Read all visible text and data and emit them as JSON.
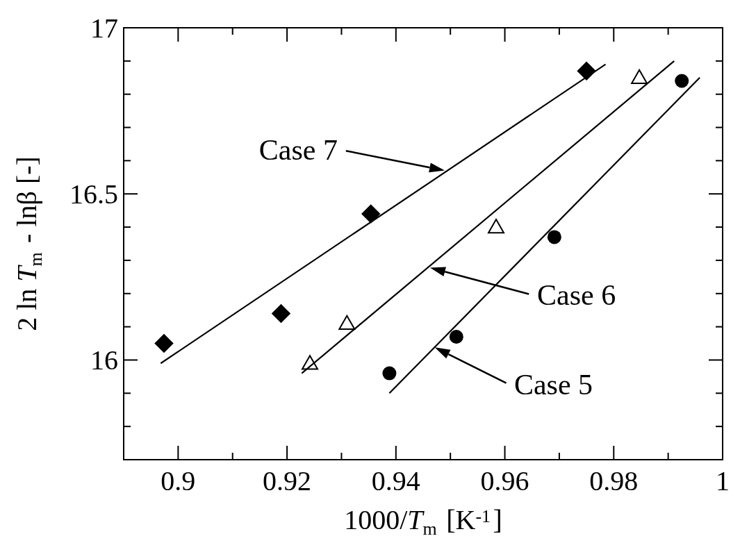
{
  "chart_data": {
    "type": "scatter",
    "xlabel": "1000/T$_{m}$ [K$^{-1}$]",
    "ylabel": "2 ln T$_{m}$ - lnβ [-]",
    "xlim": [
      0.89,
      1
    ],
    "ylim": [
      15.7,
      17
    ],
    "xticks": [
      0.9,
      {
        "value": 0.91,
        "label": null
      },
      0.92,
      {
        "value": 0.93,
        "label": null
      },
      0.94,
      {
        "value": 0.95,
        "label": null
      },
      0.96,
      {
        "value": 0.97,
        "label": null
      },
      0.98,
      {
        "value": 0.99,
        "label": null
      },
      1
    ],
    "yticks": [
      {
        "value": 15.8,
        "label": null
      },
      {
        "value": 15.9,
        "label": null
      },
      16,
      {
        "value": 16.1,
        "label": null
      },
      {
        "value": 16.2,
        "label": null
      },
      {
        "value": 16.3,
        "label": null
      },
      {
        "value": 16.4,
        "label": null
      },
      16.5,
      {
        "value": 16.6,
        "label": null
      },
      {
        "value": 16.7,
        "label": null
      },
      {
        "value": 16.8,
        "label": null
      },
      {
        "value": 16.9,
        "label": null
      },
      17
    ],
    "grid": false,
    "series": [
      {
        "marker": "diamond",
        "color": "#000000",
        "x": [
          0.8974,
          0.9189,
          0.9354,
          0.975
        ],
        "values": [
          16.05,
          16.14,
          16.44,
          16.87
        ]
      },
      {
        "marker": "triangle",
        "color": "#000000",
        "x": [
          0.9242,
          0.931,
          0.9584,
          0.9847
        ],
        "values": [
          15.99,
          16.11,
          16.4,
          16.85
        ]
      },
      {
        "marker": "circle",
        "color": "#000000",
        "x": [
          0.9388,
          0.9511,
          0.9691,
          0.9925
        ],
        "values": [
          15.96,
          16.07,
          16.37,
          16.84
        ]
      },
      {
        "type": "line",
        "marker": "none",
        "color": "#000000",
        "x": [
          0.8968,
          0.9785
        ],
        "values": [
          15.99,
          16.89
        ]
      },
      {
        "type": "line",
        "marker": "none",
        "color": "#000000",
        "x": [
          0.9227,
          0.9911
        ],
        "values": [
          15.96,
          16.9
        ]
      },
      {
        "type": "line",
        "marker": "none",
        "color": "#000000",
        "x": [
          0.9388,
          0.9958
        ],
        "values": [
          15.9,
          16.85
        ]
      }
    ],
    "annotations": [
      "Case 7",
      "Case 6",
      {
        "text": "Case 5",
        "x": 0.9469,
        "y": 16.04
      }
    ]
  }
}
